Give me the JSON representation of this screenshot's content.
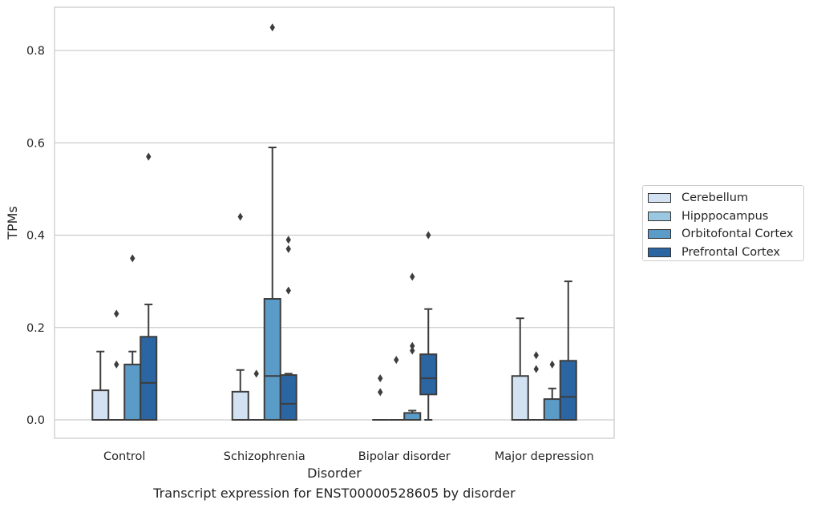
{
  "caption": "Transcript expression for ENST00000528605 by disorder",
  "chart_data": {
    "type": "box",
    "xlabel": "Disorder",
    "ylabel": "TPMs",
    "ylim": [
      -0.04,
      0.893
    ],
    "yticks": [
      "0.0",
      "0.2",
      "0.4",
      "0.6",
      "0.8"
    ],
    "grid": true,
    "legend_position": "right",
    "categories": [
      "Control",
      "Schizophrenia",
      "Bipolar disorder",
      "Major depression"
    ],
    "series": [
      {
        "name": "Cerebellum",
        "color": "#d2e2f2",
        "boxes": [
          {
            "q1": 0.0,
            "median": 0.0,
            "q3": 0.064,
            "whisker_low": 0.0,
            "whisker_high": 0.148,
            "outliers": []
          },
          {
            "q1": 0.0,
            "median": 0.0,
            "q3": 0.061,
            "whisker_low": 0.0,
            "whisker_high": 0.108,
            "outliers": [
              0.44
            ]
          },
          {
            "q1": 0.0,
            "median": 0.0,
            "q3": 0.0,
            "whisker_low": 0.0,
            "whisker_high": 0.0,
            "outliers": [
              0.09,
              0.06
            ]
          },
          {
            "q1": 0.0,
            "median": 0.0,
            "q3": 0.095,
            "whisker_low": 0.0,
            "whisker_high": 0.22,
            "outliers": []
          }
        ]
      },
      {
        "name": "Hipppocampus",
        "color": "#9ac8e0",
        "boxes": [
          {
            "q1": 0.0,
            "median": 0.0,
            "q3": 0.0,
            "whisker_low": 0.0,
            "whisker_high": 0.0,
            "outliers": [
              0.23,
              0.12
            ]
          },
          {
            "q1": 0.0,
            "median": 0.0,
            "q3": 0.0,
            "whisker_low": 0.0,
            "whisker_high": 0.0,
            "outliers": [
              0.1
            ]
          },
          {
            "q1": 0.0,
            "median": 0.0,
            "q3": 0.0,
            "whisker_low": 0.0,
            "whisker_high": 0.0,
            "outliers": [
              0.13
            ]
          },
          {
            "q1": 0.0,
            "median": 0.0,
            "q3": 0.0,
            "whisker_low": 0.0,
            "whisker_high": 0.0,
            "outliers": [
              0.14,
              0.11
            ]
          }
        ]
      },
      {
        "name": "Orbitofontal Cortex",
        "color": "#5b9bc7",
        "boxes": [
          {
            "q1": 0.0,
            "median": 0.0,
            "q3": 0.12,
            "whisker_low": 0.0,
            "whisker_high": 0.148,
            "outliers": [
              0.35
            ]
          },
          {
            "q1": 0.0,
            "median": 0.095,
            "q3": 0.262,
            "whisker_low": 0.0,
            "whisker_high": 0.59,
            "outliers": [
              0.85
            ]
          },
          {
            "q1": 0.0,
            "median": 0.0,
            "q3": 0.015,
            "whisker_low": 0.0,
            "whisker_high": 0.02,
            "outliers": [
              0.31,
              0.16,
              0.15
            ]
          },
          {
            "q1": 0.0,
            "median": 0.0,
            "q3": 0.045,
            "whisker_low": 0.0,
            "whisker_high": 0.068,
            "outliers": [
              0.12
            ]
          }
        ]
      },
      {
        "name": "Prefrontal Cortex",
        "color": "#2b66a3",
        "boxes": [
          {
            "q1": 0.0,
            "median": 0.08,
            "q3": 0.18,
            "whisker_low": 0.0,
            "whisker_high": 0.25,
            "outliers": [
              0.57
            ]
          },
          {
            "q1": 0.0,
            "median": 0.035,
            "q3": 0.097,
            "whisker_low": 0.0,
            "whisker_high": 0.1,
            "outliers": [
              0.39,
              0.37,
              0.28
            ]
          },
          {
            "q1": 0.055,
            "median": 0.09,
            "q3": 0.142,
            "whisker_low": 0.0,
            "whisker_high": 0.24,
            "outliers": [
              0.4
            ]
          },
          {
            "q1": 0.0,
            "median": 0.05,
            "q3": 0.128,
            "whisker_low": 0.0,
            "whisker_high": 0.3,
            "outliers": []
          }
        ]
      }
    ]
  }
}
